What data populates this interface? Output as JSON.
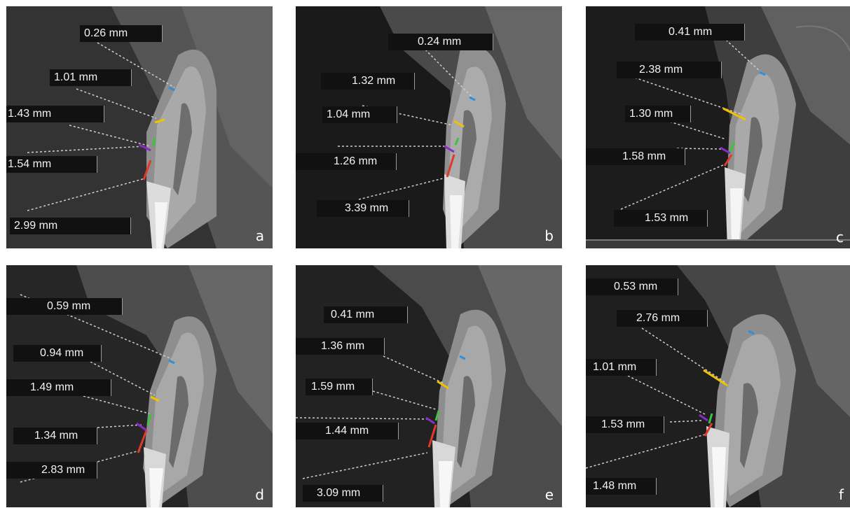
{
  "figure": {
    "colors": {
      "cyan": "#2f8fd8",
      "yellow": "#f2c200",
      "green": "#3cc43c",
      "purple": "#8a2bc9",
      "red": "#e03a2a",
      "label_bg": "#111111",
      "label_text": "#f2f2f2"
    },
    "panels": [
      {
        "letter": "a",
        "measurements": [
          "0.26 mm",
          "1.01 mm",
          "1.43 mm",
          "1.54 mm",
          "2.99 mm"
        ]
      },
      {
        "letter": "b",
        "measurements": [
          "0.24 mm",
          "1.32 mm",
          "1.04 mm",
          "1.26 mm",
          "3.39 mm"
        ]
      },
      {
        "letter": "c",
        "measurements": [
          "0.41 mm",
          "2.38 mm",
          "1.30 mm",
          "1.58 mm",
          "1.53 mm"
        ]
      },
      {
        "letter": "d",
        "measurements": [
          "0.59 mm",
          "0.94 mm",
          "1.49 mm",
          "1.34 mm",
          "2.83 mm"
        ]
      },
      {
        "letter": "e",
        "measurements": [
          "0.41 mm",
          "1.36 mm",
          "1.59 mm",
          "1.44 mm",
          "3.09 mm"
        ]
      },
      {
        "letter": "f",
        "measurements": [
          "0.53 mm",
          "2.76 mm",
          "1.01 mm",
          "1.53 mm",
          "1.48 mm"
        ]
      }
    ]
  }
}
